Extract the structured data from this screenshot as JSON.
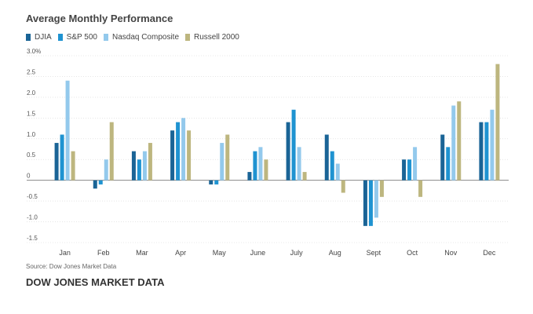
{
  "chart_data": {
    "type": "bar",
    "title": "Average Monthly Performance",
    "xlabel": "",
    "ylabel": "",
    "categories": [
      "Jan",
      "Feb",
      "Mar",
      "Apr",
      "May",
      "June",
      "July",
      "Aug",
      "Sept",
      "Oct",
      "Nov",
      "Dec"
    ],
    "ylim": [
      -1.5,
      3.0
    ],
    "yticks": [
      3.0,
      2.5,
      2.0,
      1.5,
      1.0,
      0.5,
      0,
      -0.5,
      -1.0,
      -1.5
    ],
    "ytick_labels": [
      "3.0%",
      "2.5",
      "2.0",
      "1.5",
      "1.0",
      "0.5",
      "0",
      "-0.5",
      "-1.0",
      "-1.5"
    ],
    "grid": "horizontal",
    "legend_position": "top-left",
    "series": [
      {
        "name": "DJIA",
        "color": "#1a6496",
        "values": [
          0.9,
          -0.2,
          0.7,
          1.2,
          -0.1,
          0.2,
          1.4,
          1.1,
          -1.1,
          0.5,
          1.1,
          1.4
        ]
      },
      {
        "name": "S&P 500",
        "color": "#1f93d1",
        "values": [
          1.1,
          -0.1,
          0.5,
          1.4,
          -0.1,
          0.7,
          1.7,
          0.7,
          -1.1,
          0.5,
          0.8,
          1.4
        ]
      },
      {
        "name": "Nasdaq Composite",
        "color": "#93c9ec",
        "values": [
          2.4,
          0.5,
          0.7,
          1.5,
          0.9,
          0.8,
          0.8,
          0.4,
          -0.9,
          0.8,
          1.8,
          1.7
        ]
      },
      {
        "name": "Russell 2000",
        "color": "#bdb67f",
        "values": [
          0.7,
          1.4,
          0.9,
          1.2,
          1.1,
          0.5,
          0.2,
          -0.3,
          -0.4,
          -0.4,
          1.9,
          2.8
        ]
      }
    ]
  },
  "footer": {
    "source": "Source: Dow Jones Market Data",
    "brand": "DOW JONES MARKET DATA"
  }
}
